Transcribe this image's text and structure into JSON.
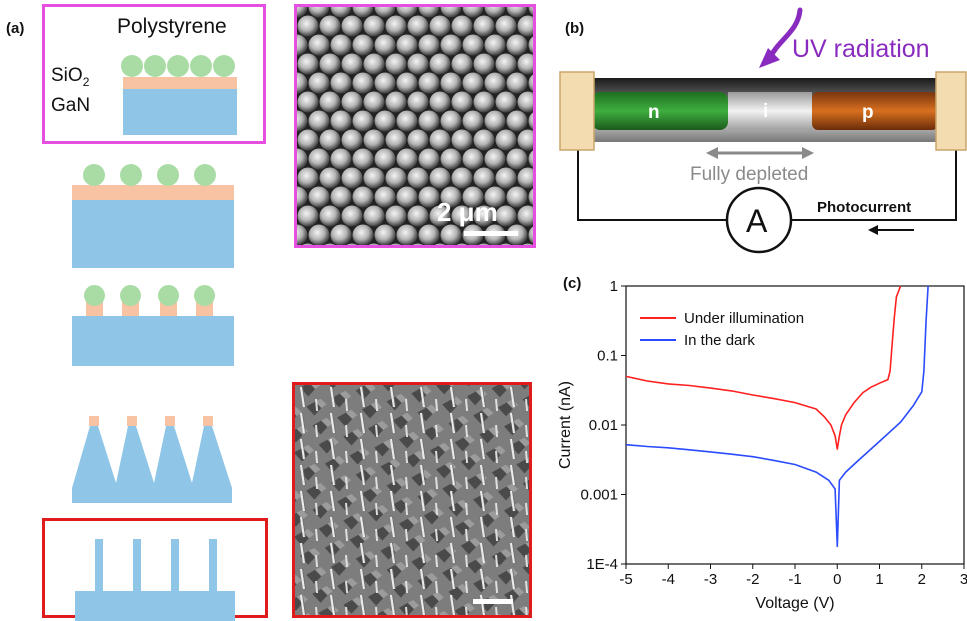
{
  "panel_a": {
    "label": "(a)",
    "legend_polystyrene": "Polystyrene",
    "legend_sio2_main": "SiO",
    "legend_sio2_sub": "2",
    "legend_gan": "GaN",
    "sem_top_scale": "2 μm"
  },
  "panel_b": {
    "label": "(b)",
    "uv_label": "UV radiation",
    "region_n": "n",
    "region_i": "i",
    "region_p": "p",
    "depleted_label": "Fully depleted",
    "ammeter_label": "A",
    "photocurrent_label": "Photocurrent"
  },
  "panel_c": {
    "label": "(c)"
  },
  "colors": {
    "frame_pink": "#e64fe0",
    "frame_red": "#e01b1b",
    "gan_blue": "#8fc6e8",
    "sio2_orange": "#f7c3a2",
    "polystyrene_green": "#a9dca5",
    "uv_purple": "#8a2bbf",
    "series_light": "#ff2020",
    "series_dark": "#2a4bff"
  },
  "chart_data": {
    "type": "line",
    "xlabel": "Voltage (V)",
    "ylabel": "Current (nA)",
    "xlim": [
      -5,
      3
    ],
    "ylim": [
      0.0001,
      1
    ],
    "yscale": "log",
    "xticks": [
      "-5",
      "-4",
      "-3",
      "-2",
      "-1",
      "0",
      "1",
      "2",
      "3"
    ],
    "yticks": [
      "1E-4",
      "0.001",
      "0.01",
      "0.1",
      "1"
    ],
    "legend_position": "top-left",
    "series": [
      {
        "name": "Under illumination",
        "color": "#ff2020",
        "x": [
          -5,
          -4.5,
          -4,
          -3.5,
          -3,
          -2.5,
          -2,
          -1.5,
          -1,
          -0.5,
          -0.3,
          -0.15,
          -0.05,
          0,
          0.05,
          0.1,
          0.2,
          0.4,
          0.6,
          0.8,
          1.0,
          1.2,
          1.25,
          1.3,
          1.35,
          1.4,
          1.5
        ],
        "y": [
          0.05,
          0.043,
          0.039,
          0.037,
          0.034,
          0.031,
          0.027,
          0.024,
          0.021,
          0.017,
          0.013,
          0.01,
          0.007,
          0.0045,
          0.007,
          0.01,
          0.014,
          0.021,
          0.029,
          0.035,
          0.04,
          0.045,
          0.06,
          0.15,
          0.35,
          0.7,
          1
        ]
      },
      {
        "name": "In the dark",
        "color": "#2a4bff",
        "x": [
          -5,
          -4.5,
          -4,
          -3.5,
          -3,
          -2.5,
          -2,
          -1.5,
          -1,
          -0.5,
          -0.2,
          -0.05,
          0,
          0.05,
          0.2,
          0.5,
          1.0,
          1.5,
          1.8,
          2.0,
          2.05,
          2.1,
          2.15
        ],
        "y": [
          0.0052,
          0.0049,
          0.0047,
          0.0044,
          0.0041,
          0.0038,
          0.0035,
          0.0031,
          0.0027,
          0.0021,
          0.0016,
          0.0012,
          0.00018,
          0.0016,
          0.0021,
          0.0031,
          0.0058,
          0.011,
          0.019,
          0.03,
          0.06,
          0.3,
          1
        ]
      }
    ]
  }
}
